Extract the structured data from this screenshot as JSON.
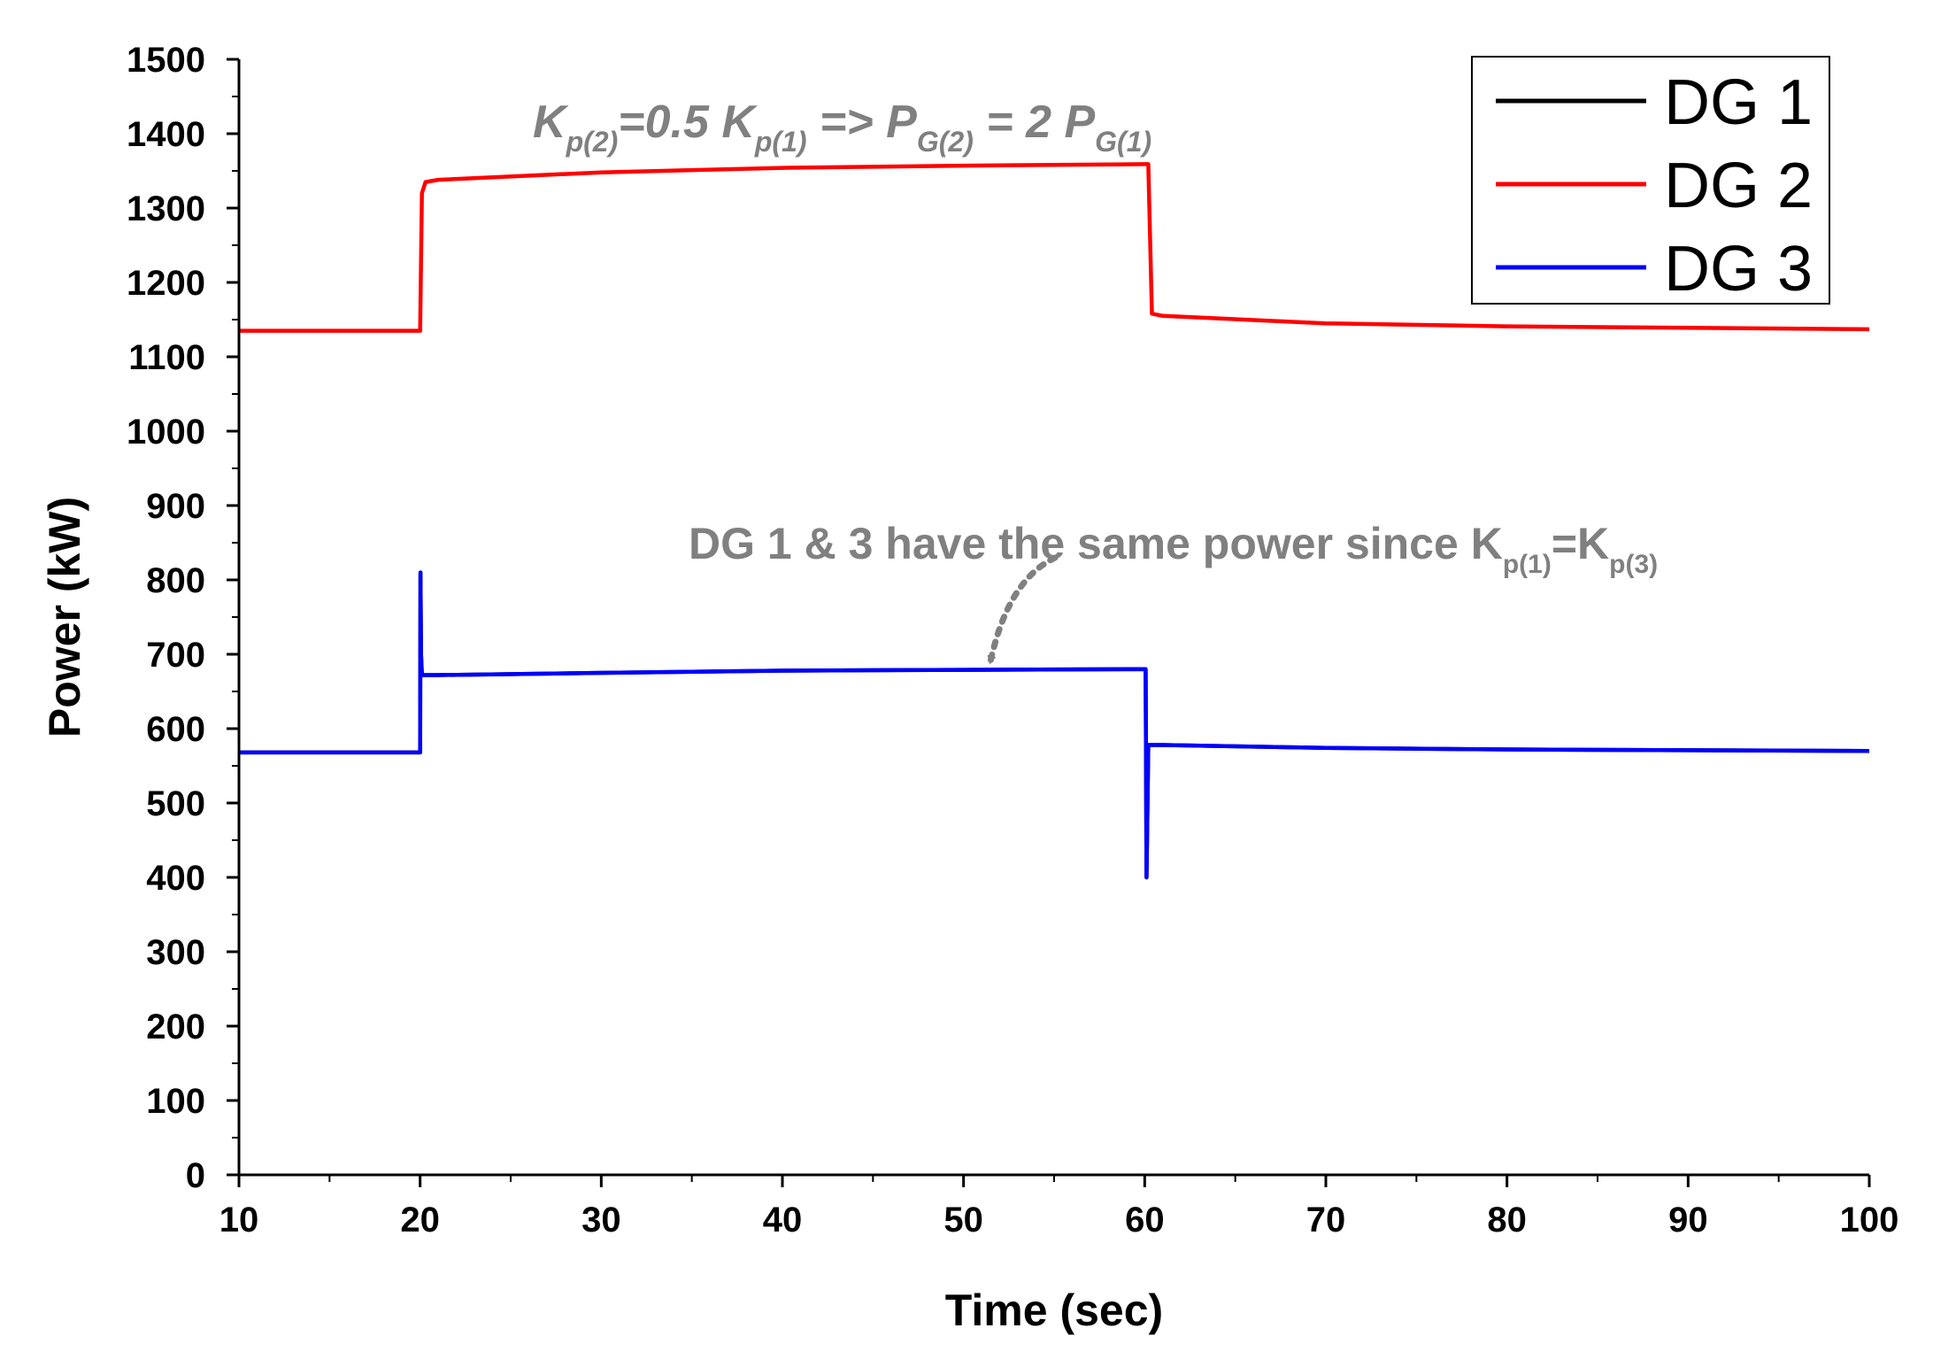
{
  "chart_data": {
    "type": "line",
    "title": "",
    "xlabel": "Time (sec)",
    "ylabel": "Power (kW)",
    "xlim": [
      10,
      100
    ],
    "ylim": [
      0,
      1500
    ],
    "xticks": [
      10,
      20,
      30,
      40,
      50,
      60,
      70,
      80,
      90,
      100
    ],
    "yticks": [
      0,
      100,
      200,
      300,
      400,
      500,
      600,
      700,
      800,
      900,
      1000,
      1100,
      1200,
      1300,
      1400,
      1500
    ],
    "grid": false,
    "legend_position": "top-right",
    "colors": {
      "DG 1": "#000000",
      "DG 2": "#ff0000",
      "DG 3": "#0000ff",
      "annotation": "#808080"
    },
    "series": [
      {
        "name": "DG 1",
        "x": [
          10,
          20,
          20.02,
          20.05,
          20.1,
          21,
          30,
          40,
          50,
          60,
          60.05,
          60.1,
          60.2,
          61,
          70,
          80,
          90,
          100
        ],
        "y": [
          568,
          568,
          810,
          700,
          672,
          672,
          675,
          678,
          679,
          680,
          680,
          400,
          578,
          578,
          574,
          572,
          571,
          570
        ]
      },
      {
        "name": "DG 2",
        "x": [
          10,
          20,
          20.1,
          20.3,
          21,
          30,
          40,
          50,
          60,
          60.2,
          60.4,
          61,
          70,
          80,
          90,
          100
        ],
        "y": [
          1135,
          1135,
          1320,
          1335,
          1338,
          1348,
          1354,
          1357,
          1359,
          1359,
          1158,
          1155,
          1145,
          1141,
          1139,
          1137
        ]
      },
      {
        "name": "DG 3",
        "x": [
          10,
          20,
          20.02,
          20.05,
          20.1,
          21,
          30,
          40,
          50,
          60,
          60.05,
          60.1,
          60.2,
          61,
          70,
          80,
          90,
          100
        ],
        "y": [
          568,
          568,
          810,
          700,
          672,
          672,
          675,
          678,
          679,
          680,
          680,
          400,
          578,
          578,
          574,
          572,
          571,
          570
        ]
      }
    ],
    "annotations": [
      {
        "parts": [
          "K",
          "p(2)",
          "=0.5 K",
          "p(1)",
          " => P",
          "G(2)",
          " = 2 P",
          "G(1)"
        ]
      },
      {
        "parts": [
          "DG 1 & 3 have the same power since K",
          "p(1)",
          "=K",
          "p(3)"
        ],
        "arrow_target": {
          "x": 51.5,
          "y": 680
        }
      }
    ]
  }
}
